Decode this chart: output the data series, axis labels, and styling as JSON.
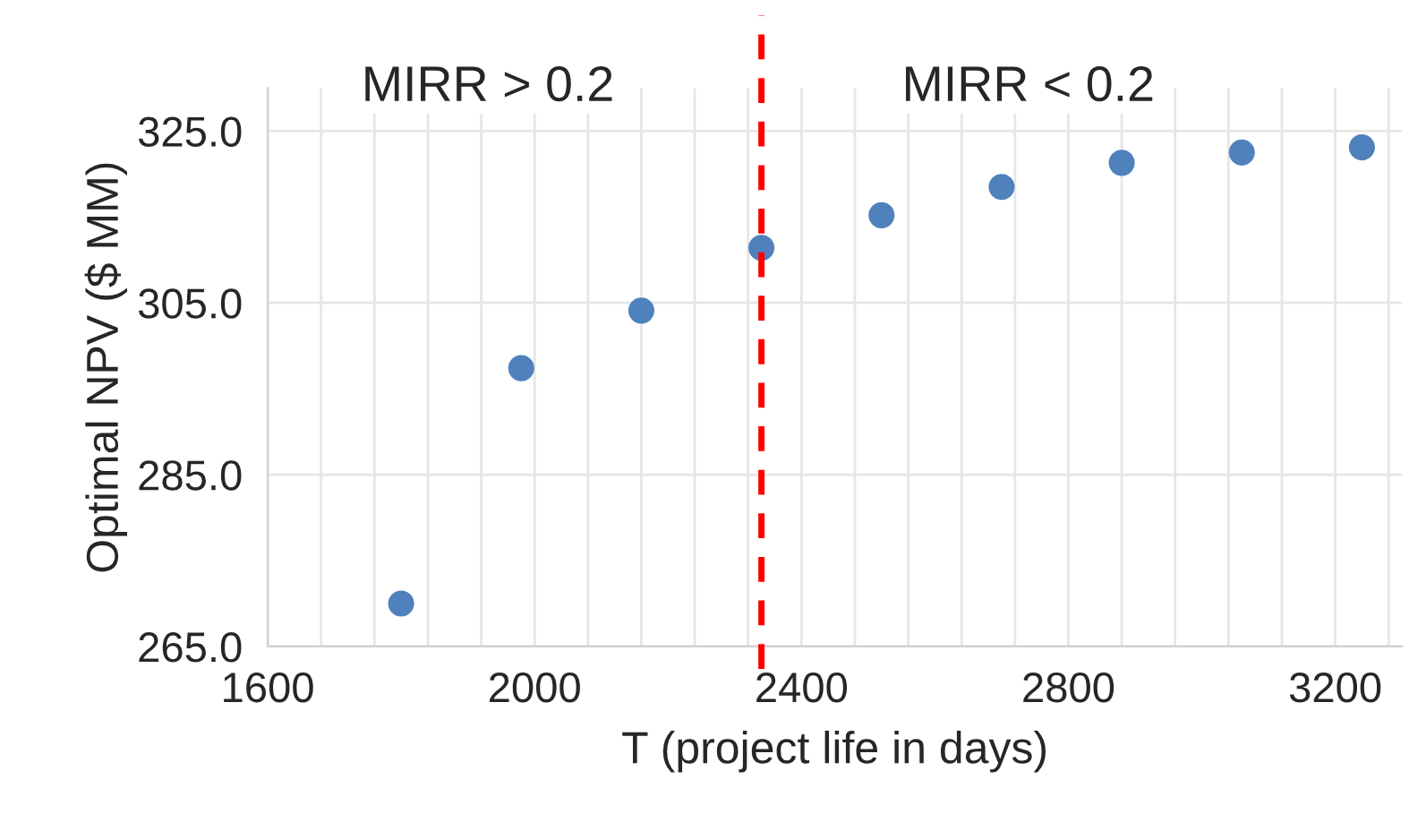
{
  "chart_data": {
    "type": "scatter",
    "xlabel": "T (project life in days)",
    "ylabel": "Optimal NPV ($ MM)",
    "x": [
      1800,
      1980,
      2160,
      2340,
      2520,
      2700,
      2880,
      3060,
      3240
    ],
    "series": [
      {
        "color": "#4f81bd",
        "values": [
          270.0,
          297.4,
          304.1,
          311.4,
          315.2,
          318.5,
          321.3,
          322.5,
          323.1
        ]
      }
    ],
    "xlim": [
      1600,
      3300
    ],
    "xticks": [
      1600,
      {
        "value": 1680,
        "label": null
      },
      {
        "value": 1760,
        "label": null
      },
      {
        "value": 1840,
        "label": null
      },
      {
        "value": 1920,
        "label": null
      },
      2000,
      {
        "value": 2080,
        "label": null
      },
      {
        "value": 2160,
        "label": null
      },
      {
        "value": 2240,
        "label": null
      },
      {
        "value": 2320,
        "label": null
      },
      2400,
      {
        "value": 2480,
        "label": null
      },
      {
        "value": 2560,
        "label": null
      },
      {
        "value": 2640,
        "label": null
      },
      {
        "value": 2720,
        "label": null
      },
      2800,
      {
        "value": 2880,
        "label": null
      },
      {
        "value": 2960,
        "label": null
      },
      {
        "value": 3040,
        "label": null
      },
      {
        "value": 3120,
        "label": null
      },
      3200,
      {
        "value": 3280,
        "label": null
      }
    ],
    "ylim": [
      265,
      330
    ],
    "yticks": [
      {
        "value": 265,
        "label": "265.0"
      },
      {
        "value": 285,
        "label": "285.0"
      },
      {
        "value": 305,
        "label": "305.0"
      },
      {
        "value": 325,
        "label": "325.0"
      }
    ],
    "ref_lines": [
      {
        "axis": "x",
        "value": 2340,
        "color": "#ff0000",
        "line_style": "dashed"
      }
    ],
    "annotations": [
      "MIRR > 0.2",
      "MIRR < 0.2"
    ],
    "grid": true,
    "marker": "circle",
    "legend": false
  }
}
